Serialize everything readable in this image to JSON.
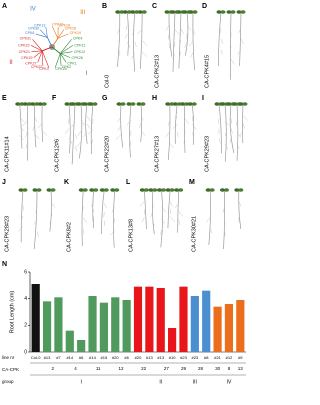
{
  "panels": [
    {
      "letter": "A"
    },
    {
      "letter": "B",
      "label": "Col-0"
    },
    {
      "letter": "C",
      "label": "CA-CPK2#13"
    },
    {
      "letter": "D",
      "label": "CA-CPK4#15"
    },
    {
      "letter": "E",
      "label": "CA-CPK11#14"
    },
    {
      "letter": "F",
      "label": "CA-CPK12#6"
    },
    {
      "letter": "G",
      "label": "CA-CPK22#20"
    },
    {
      "letter": "H",
      "label": "CA-CPK27#13"
    },
    {
      "letter": "I",
      "label": "CA-CPK29#23"
    },
    {
      "letter": "J",
      "label": "CA-CPK28#23"
    },
    {
      "letter": "K",
      "label": "CA-CPK8#2"
    },
    {
      "letter": "L",
      "label": "CA-CPK13#8"
    },
    {
      "letter": "M",
      "label": "CA-CPK30#21"
    },
    {
      "letter": "N"
    }
  ],
  "tree": {
    "groups": [
      {
        "name": "III",
        "color": "#e07b1a",
        "members": [
          "CPK16",
          "CPK18",
          "CPK28",
          "CPK19"
        ]
      },
      {
        "name": "I",
        "color": "#2e8b3a",
        "members": [
          "CPK4",
          "CPK11",
          "CPK12",
          "CPK26",
          "CPK1",
          "CPK2",
          "CPK20"
        ]
      },
      {
        "name": "II",
        "color": "#d62728",
        "members": [
          "CPK3",
          "CPK22",
          "CPK27",
          "CPK29",
          "CPK21",
          "CPK23",
          "CPK31"
        ]
      },
      {
        "name": "IV",
        "color": "#3a7fc4",
        "members": [
          "CPK8",
          "CPK30",
          "CPK13"
        ]
      }
    ]
  },
  "chart_data": {
    "type": "bar",
    "y_label": "Root Length (cm)",
    "categories": [
      "Col-0",
      "#13",
      "#7",
      "#14",
      "#6",
      "#14",
      "#15",
      "#20",
      "#6",
      "#20",
      "#13",
      "#13",
      "#10",
      "#23",
      "#23",
      "#8",
      "#21",
      "#12",
      "#9"
    ],
    "values": [
      5.1,
      3.8,
      4.1,
      1.6,
      0.9,
      4.2,
      3.7,
      4.1,
      3.9,
      4.9,
      4.9,
      4.8,
      1.8,
      4.9,
      4.2,
      4.6,
      3.4,
      3.6,
      3.9
    ],
    "colors": [
      "#111111",
      "#4f9a5c",
      "#4f9a5c",
      "#4f9a5c",
      "#4f9a5c",
      "#4f9a5c",
      "#4f9a5c",
      "#4f9a5c",
      "#4f9a5c",
      "#e8161b",
      "#e8161b",
      "#e8161b",
      "#e8161b",
      "#e8161b",
      "#4a8fd0",
      "#4a8fd0",
      "#ec6e1c",
      "#ec6e1c",
      "#ec6e1c"
    ],
    "cpk": [
      null,
      "2",
      null,
      "4",
      null,
      "11",
      null,
      "12",
      null,
      "22",
      null,
      "27",
      null,
      "29",
      "28",
      null,
      "30",
      "8",
      "13"
    ],
    "groups": [
      null,
      null,
      null,
      null,
      "I",
      null,
      null,
      null,
      null,
      null,
      null,
      "II",
      null,
      null,
      "III",
      null,
      null,
      "IV",
      null
    ],
    "row_labels": [
      "line nr",
      "CA-CPK",
      "group"
    ],
    "ylim": [
      0,
      6
    ],
    "yticks": [
      0,
      2,
      4,
      6
    ]
  }
}
